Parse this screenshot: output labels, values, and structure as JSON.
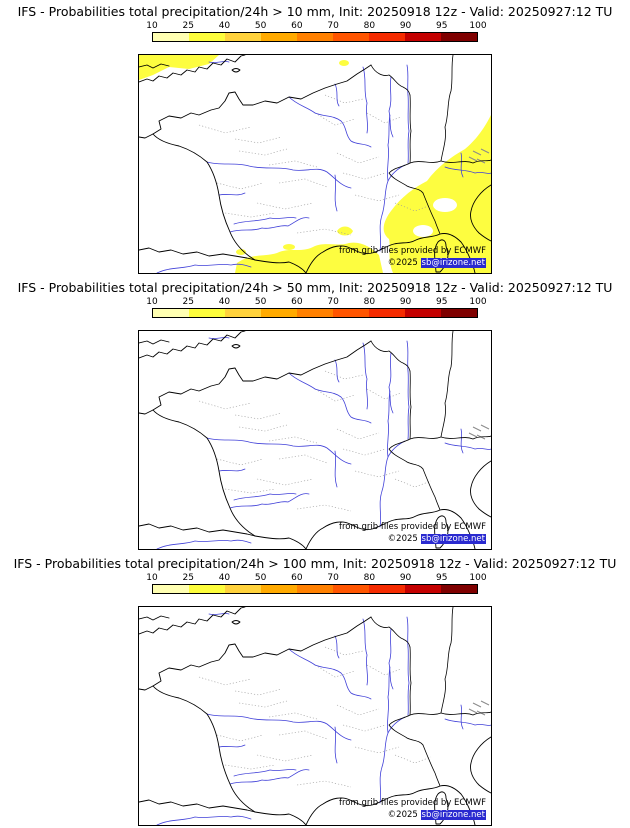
{
  "page": {
    "background": "#ffffff"
  },
  "colorbar": {
    "ticks": [
      "10",
      "25",
      "40",
      "50",
      "60",
      "70",
      "80",
      "90",
      "95",
      "100"
    ],
    "segment_colors": [
      "#ffffb2",
      "#fdfd3c",
      "#ffd23c",
      "#ffaa00",
      "#ff8000",
      "#ff5500",
      "#f52b00",
      "#c40000",
      "#7f0000"
    ]
  },
  "colors": {
    "river": "#4040d8",
    "border": "#000000",
    "admin": "#9a9a9a",
    "overlay_yellow": "#fdfd40",
    "link_bg": "#2a2ad0",
    "link_fg": "#ffffff"
  },
  "panels": [
    {
      "title": "IFS - Probabilities total precipitation/24h > 10 mm, Init: 20250918 12z - Valid: 20250927:12 TU",
      "threshold_mm": 10,
      "has_precip_overlay": true
    },
    {
      "title": "IFS - Probabilities total precipitation/24h > 50 mm, Init: 20250918 12z - Valid: 20250927:12 TU",
      "threshold_mm": 50,
      "has_precip_overlay": false
    },
    {
      "title": "IFS - Probabilities total precipitation/24h > 100 mm, Init: 20250918 12z - Valid: 20250927:12 TU",
      "threshold_mm": 100,
      "has_precip_overlay": false
    }
  ],
  "attribution": {
    "provider_line": "from grib files provided by ECMWF",
    "copyright_prefix": "©2025 ",
    "copyright_link": "sb@irizone.net"
  }
}
